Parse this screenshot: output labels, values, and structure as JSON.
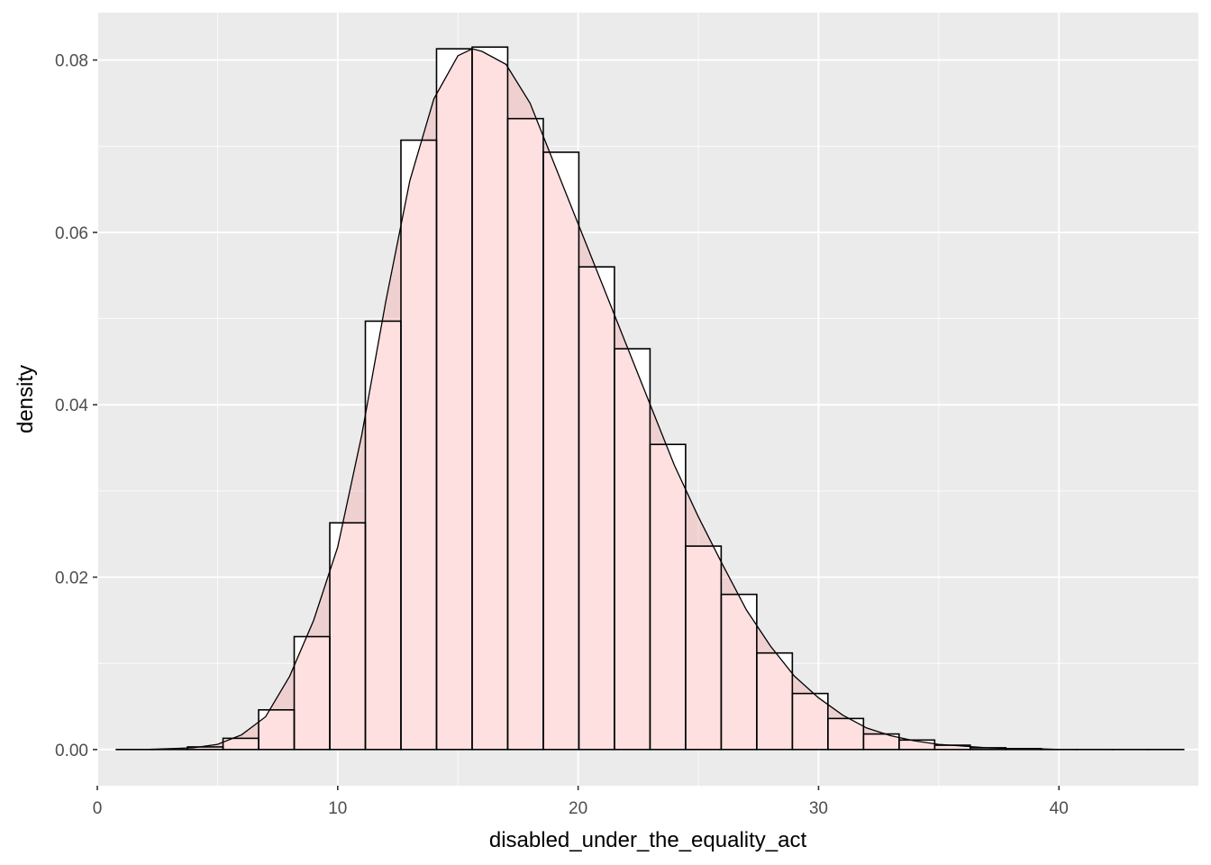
{
  "chart_data": {
    "type": "bar",
    "subtype": "histogram with density overlay",
    "xlabel": "disabled_under_the_equality_act",
    "ylabel": "density",
    "xlim": [
      0,
      45.8
    ],
    "ylim": [
      -0.0042,
      0.0855
    ],
    "x_ticks": [
      0,
      10,
      20,
      30,
      40
    ],
    "y_ticks": [
      0.0,
      0.02,
      0.04,
      0.06,
      0.08
    ],
    "x_tick_labels": [
      "0",
      "10",
      "20",
      "30",
      "40"
    ],
    "y_tick_labels": [
      "0.00",
      "0.02",
      "0.04",
      "0.06",
      "0.08"
    ],
    "grid": true,
    "bin_width": 1.48,
    "bins": [
      {
        "x0": 0.79,
        "x1": 2.27,
        "y": 0.0
      },
      {
        "x0": 2.27,
        "x1": 3.75,
        "y": 0.0
      },
      {
        "x0": 3.75,
        "x1": 5.23,
        "y": 0.0003
      },
      {
        "x0": 5.23,
        "x1": 6.71,
        "y": 0.0013
      },
      {
        "x0": 6.71,
        "x1": 8.19,
        "y": 0.0046
      },
      {
        "x0": 8.19,
        "x1": 9.67,
        "y": 0.0131
      },
      {
        "x0": 9.67,
        "x1": 11.15,
        "y": 0.0263
      },
      {
        "x0": 11.15,
        "x1": 12.63,
        "y": 0.0497
      },
      {
        "x0": 12.63,
        "x1": 14.11,
        "y": 0.0707
      },
      {
        "x0": 14.11,
        "x1": 15.59,
        "y": 0.0813
      },
      {
        "x0": 15.59,
        "x1": 17.07,
        "y": 0.0815
      },
      {
        "x0": 17.07,
        "x1": 18.55,
        "y": 0.0732
      },
      {
        "x0": 18.55,
        "x1": 20.03,
        "y": 0.0693
      },
      {
        "x0": 20.03,
        "x1": 21.51,
        "y": 0.056
      },
      {
        "x0": 21.51,
        "x1": 22.99,
        "y": 0.0465
      },
      {
        "x0": 22.99,
        "x1": 24.47,
        "y": 0.0354
      },
      {
        "x0": 24.47,
        "x1": 25.95,
        "y": 0.0236
      },
      {
        "x0": 25.95,
        "x1": 27.43,
        "y": 0.018
      },
      {
        "x0": 27.43,
        "x1": 28.91,
        "y": 0.0112
      },
      {
        "x0": 28.91,
        "x1": 30.39,
        "y": 0.0065
      },
      {
        "x0": 30.39,
        "x1": 31.87,
        "y": 0.0036
      },
      {
        "x0": 31.87,
        "x1": 33.35,
        "y": 0.0018
      },
      {
        "x0": 33.35,
        "x1": 34.83,
        "y": 0.0011
      },
      {
        "x0": 34.83,
        "x1": 36.31,
        "y": 0.0005
      },
      {
        "x0": 36.31,
        "x1": 37.79,
        "y": 0.0002
      },
      {
        "x0": 37.79,
        "x1": 39.27,
        "y": 0.0001
      },
      {
        "x0": 39.27,
        "x1": 40.75,
        "y": 0.0
      },
      {
        "x0": 40.75,
        "x1": 42.23,
        "y": 0.0
      },
      {
        "x0": 42.23,
        "x1": 43.71,
        "y": 0.0
      },
      {
        "x0": 43.71,
        "x1": 45.19,
        "y": 0.0
      }
    ],
    "density_curve": {
      "x": [
        0.8,
        2.0,
        3.0,
        4.0,
        5.0,
        6.0,
        7.0,
        8.0,
        9.0,
        10.0,
        11.0,
        12.0,
        13.0,
        14.0,
        15.0,
        15.6,
        16.0,
        17.0,
        18.0,
        19.0,
        20.0,
        21.0,
        22.0,
        23.0,
        24.0,
        25.0,
        26.0,
        27.0,
        28.0,
        29.0,
        30.0,
        31.0,
        32.0,
        33.0,
        34.0,
        35.0,
        36.0,
        37.0,
        38.0,
        39.0,
        40.0,
        42.0,
        45.0
      ],
      "y": [
        0.0,
        0.0,
        0.0001,
        0.0002,
        0.0006,
        0.0017,
        0.0038,
        0.0085,
        0.015,
        0.0235,
        0.0365,
        0.052,
        0.066,
        0.0755,
        0.0805,
        0.0813,
        0.081,
        0.0795,
        0.075,
        0.068,
        0.061,
        0.054,
        0.047,
        0.04,
        0.033,
        0.027,
        0.0215,
        0.0162,
        0.012,
        0.0085,
        0.006,
        0.004,
        0.0025,
        0.0016,
        0.001,
        0.0006,
        0.0004,
        0.0002,
        0.0001,
        0.0001,
        0.0,
        0.0,
        0.0
      ]
    },
    "colors": {
      "panel_background": "#EBEBEB",
      "grid_major": "#FFFFFF",
      "bar_fill": "#FFFFFF",
      "bar_outline": "#000000",
      "density_fill": "#FF6666",
      "density_fill_alpha": 0.2,
      "density_line": "#000000"
    }
  }
}
